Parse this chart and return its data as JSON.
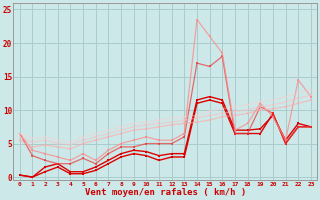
{
  "xlabel": "Vent moyen/en rafales ( km/h )",
  "background_color": "#cce8e8",
  "grid_color": "#aacccc",
  "x_min": 0,
  "x_max": 23,
  "y_min": -0.5,
  "y_max": 26,
  "yticks": [
    0,
    5,
    10,
    15,
    20,
    25
  ],
  "xticks": [
    0,
    1,
    2,
    3,
    4,
    5,
    6,
    7,
    8,
    9,
    10,
    11,
    12,
    13,
    14,
    15,
    16,
    17,
    18,
    19,
    20,
    21,
    22,
    23
  ],
  "series": [
    {
      "x": [
        0,
        1,
        2,
        3,
        4,
        5,
        6,
        7,
        8,
        9,
        10,
        11,
        12,
        13,
        14,
        15,
        16,
        17,
        18,
        19,
        20,
        21,
        22,
        23
      ],
      "y": [
        0.3,
        0,
        0.8,
        1.5,
        0.5,
        0.5,
        1.0,
        2.0,
        3.0,
        3.5,
        3.2,
        2.5,
        3.0,
        3.0,
        11.0,
        11.5,
        11.0,
        6.5,
        6.5,
        6.5,
        9.5,
        5.0,
        7.5,
        7.5
      ],
      "color": "#dd0000",
      "alpha": 1.0,
      "lw": 1.0
    },
    {
      "x": [
        0,
        1,
        2,
        3,
        4,
        5,
        6,
        7,
        8,
        9,
        10,
        11,
        12,
        13,
        14,
        15,
        16,
        17,
        18,
        19,
        20,
        21,
        22,
        23
      ],
      "y": [
        0.3,
        0,
        1.5,
        2.0,
        0.8,
        0.8,
        1.5,
        2.5,
        3.5,
        4.0,
        3.8,
        3.2,
        3.5,
        3.5,
        11.5,
        12.0,
        11.5,
        7.0,
        7.0,
        7.2,
        9.2,
        5.5,
        8.0,
        7.5
      ],
      "color": "#dd0000",
      "alpha": 1.0,
      "lw": 1.0
    },
    {
      "x": [
        0,
        1,
        2,
        3,
        4,
        5,
        6,
        7,
        8,
        9,
        10,
        11,
        12,
        13,
        14,
        15,
        16,
        17,
        18,
        19,
        20,
        21,
        22,
        23
      ],
      "y": [
        6.5,
        3.2,
        2.5,
        2.0,
        2.0,
        2.8,
        2.0,
        3.5,
        4.5,
        4.5,
        5.0,
        5.0,
        5.0,
        6.0,
        17.0,
        16.5,
        18.0,
        6.5,
        6.5,
        10.5,
        9.5,
        5.0,
        7.5,
        7.5
      ],
      "color": "#ee3333",
      "alpha": 0.7,
      "lw": 0.9
    },
    {
      "x": [
        0,
        1,
        2,
        3,
        4,
        5,
        6,
        7,
        8,
        9,
        10,
        11,
        12,
        13,
        14,
        15,
        16,
        17,
        18,
        19,
        20,
        21,
        22,
        23
      ],
      "y": [
        6.5,
        4.0,
        3.5,
        3.0,
        2.5,
        3.5,
        2.5,
        4.0,
        5.0,
        5.5,
        6.0,
        5.5,
        5.5,
        6.5,
        23.5,
        21.0,
        18.5,
        7.0,
        8.0,
        11.0,
        9.0,
        5.5,
        14.5,
        12.0
      ],
      "color": "#ff8888",
      "alpha": 0.75,
      "lw": 0.9
    },
    {
      "x": [
        0,
        1,
        2,
        3,
        4,
        5,
        6,
        7,
        8,
        9,
        10,
        11,
        12,
        13,
        14,
        15,
        16,
        17,
        18,
        19,
        20,
        21,
        22,
        23
      ],
      "y": [
        5.5,
        4.5,
        4.8,
        4.5,
        4.2,
        5.0,
        5.5,
        6.0,
        6.5,
        7.0,
        7.2,
        7.5,
        7.8,
        8.0,
        8.2,
        8.5,
        9.0,
        9.2,
        9.5,
        10.0,
        10.2,
        10.5,
        11.0,
        11.5
      ],
      "color": "#ffaaaa",
      "alpha": 0.65,
      "lw": 0.9
    },
    {
      "x": [
        0,
        1,
        2,
        3,
        4,
        5,
        6,
        7,
        8,
        9,
        10,
        11,
        12,
        13,
        14,
        15,
        16,
        17,
        18,
        19,
        20,
        21,
        22,
        23
      ],
      "y": [
        6.0,
        5.2,
        5.5,
        5.0,
        4.8,
        5.5,
        6.0,
        6.5,
        7.0,
        7.5,
        7.8,
        8.0,
        8.2,
        8.5,
        8.8,
        9.2,
        9.5,
        9.8,
        10.0,
        10.5,
        10.8,
        11.2,
        11.8,
        12.2
      ],
      "color": "#ffbbbb",
      "alpha": 0.55,
      "lw": 0.9
    },
    {
      "x": [
        0,
        1,
        2,
        3,
        4,
        5,
        6,
        7,
        8,
        9,
        10,
        11,
        12,
        13,
        14,
        15,
        16,
        17,
        18,
        19,
        20,
        21,
        22,
        23
      ],
      "y": [
        6.5,
        5.8,
        6.0,
        5.5,
        5.2,
        6.0,
        6.5,
        7.0,
        7.5,
        8.0,
        8.2,
        8.5,
        8.8,
        9.0,
        9.2,
        9.8,
        10.2,
        10.5,
        10.8,
        11.2,
        11.5,
        12.0,
        12.5,
        13.0
      ],
      "color": "#ffcccc",
      "alpha": 0.45,
      "lw": 0.9
    }
  ],
  "marker": "s",
  "marker_size": 1.8,
  "xlabel_color": "#cc0000",
  "tick_color": "#cc0000",
  "axis_color": "#999999"
}
